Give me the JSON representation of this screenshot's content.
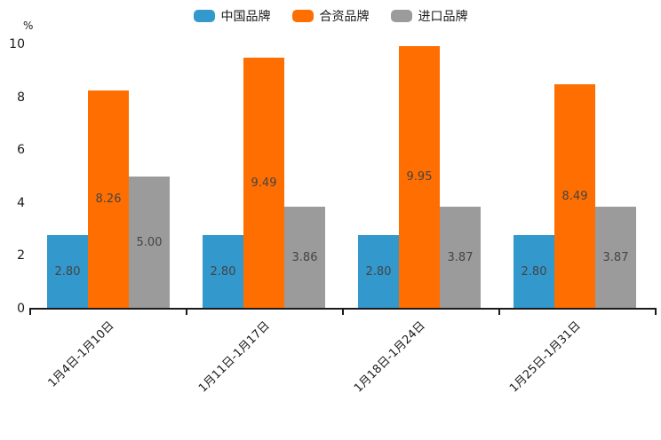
{
  "chart_data": {
    "type": "bar",
    "title": "",
    "xlabel": "",
    "ylabel": "%",
    "categories": [
      "1月4日-1月10日",
      "1月11日-1月17日",
      "1月18日-1月24日",
      "1月25日-1月31日"
    ],
    "series": [
      {
        "name": "中国品牌",
        "color": "#3398CC",
        "values": [
          2.8,
          2.8,
          2.8,
          2.8
        ]
      },
      {
        "name": "合资品牌",
        "color": "#FF6E00",
        "values": [
          8.26,
          9.49,
          9.95,
          8.49
        ]
      },
      {
        "name": "进口品牌",
        "color": "#9B9B9B",
        "values": [
          5.0,
          3.86,
          3.87,
          3.87
        ]
      }
    ],
    "value_labels": [
      [
        "2.80",
        "8.26",
        "5.00"
      ],
      [
        "2.80",
        "9.49",
        "3.86"
      ],
      [
        "2.80",
        "9.95",
        "3.87"
      ],
      [
        "2.80",
        "8.49",
        "3.87"
      ]
    ],
    "ylim": [
      0,
      10
    ],
    "yticks": [
      0,
      2,
      4,
      6,
      8,
      10
    ],
    "grid": false,
    "legend_position": "top-center",
    "label_color": "#444444",
    "axis_color": "#1a1a1a"
  }
}
